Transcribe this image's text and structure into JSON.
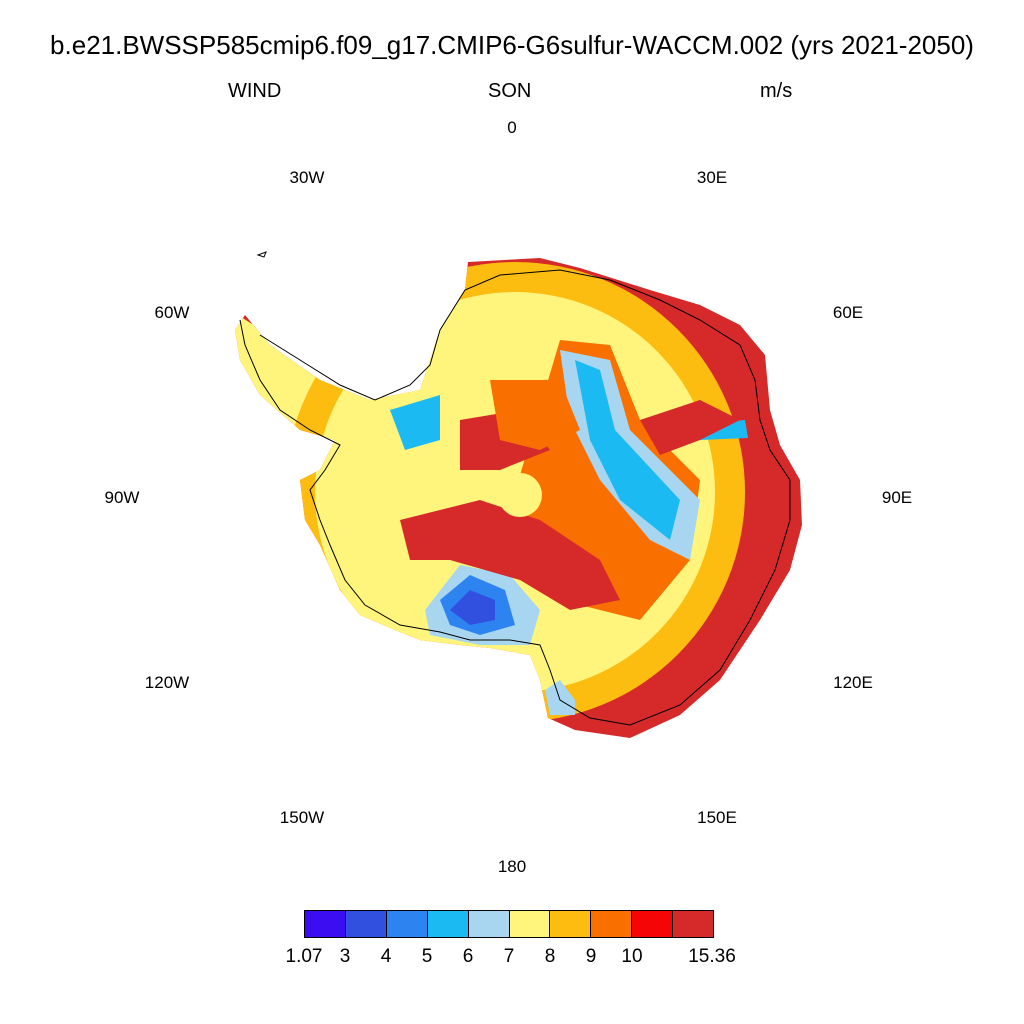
{
  "header": {
    "title": "b.e21.BWSSP585cmip6.f09_g17.CMIP6-G6sulfur-WACCM.002 (yrs 2021-2050)",
    "left": "WIND",
    "center": "SON",
    "right": "m/s"
  },
  "longitude_labels": {
    "n0": "0",
    "e30": "30E",
    "e60": "60E",
    "e90": "90E",
    "e120": "120E",
    "e150": "150E",
    "s180": "180",
    "w150": "150W",
    "w120": "120W",
    "w90": "90W",
    "w60": "60W",
    "w30": "30W"
  },
  "colorbar": {
    "colors": [
      "#3d0df2",
      "#3250e0",
      "#2d84f0",
      "#1cbaf2",
      "#a8d6f0",
      "#fff57d",
      "#fcbc10",
      "#fa7000",
      "#f50505",
      "#d62a2a"
    ],
    "labels": {
      "l0": "1.07",
      "l1": "3",
      "l2": "4",
      "l3": "5",
      "l4": "6",
      "l5": "7",
      "l6": "8",
      "l7": "9",
      "l8": "10",
      "l9": "15.36"
    }
  },
  "map_data": {
    "projection": "south polar stereographic",
    "variable": "WIND",
    "units": "m/s",
    "season": "SON"
  }
}
